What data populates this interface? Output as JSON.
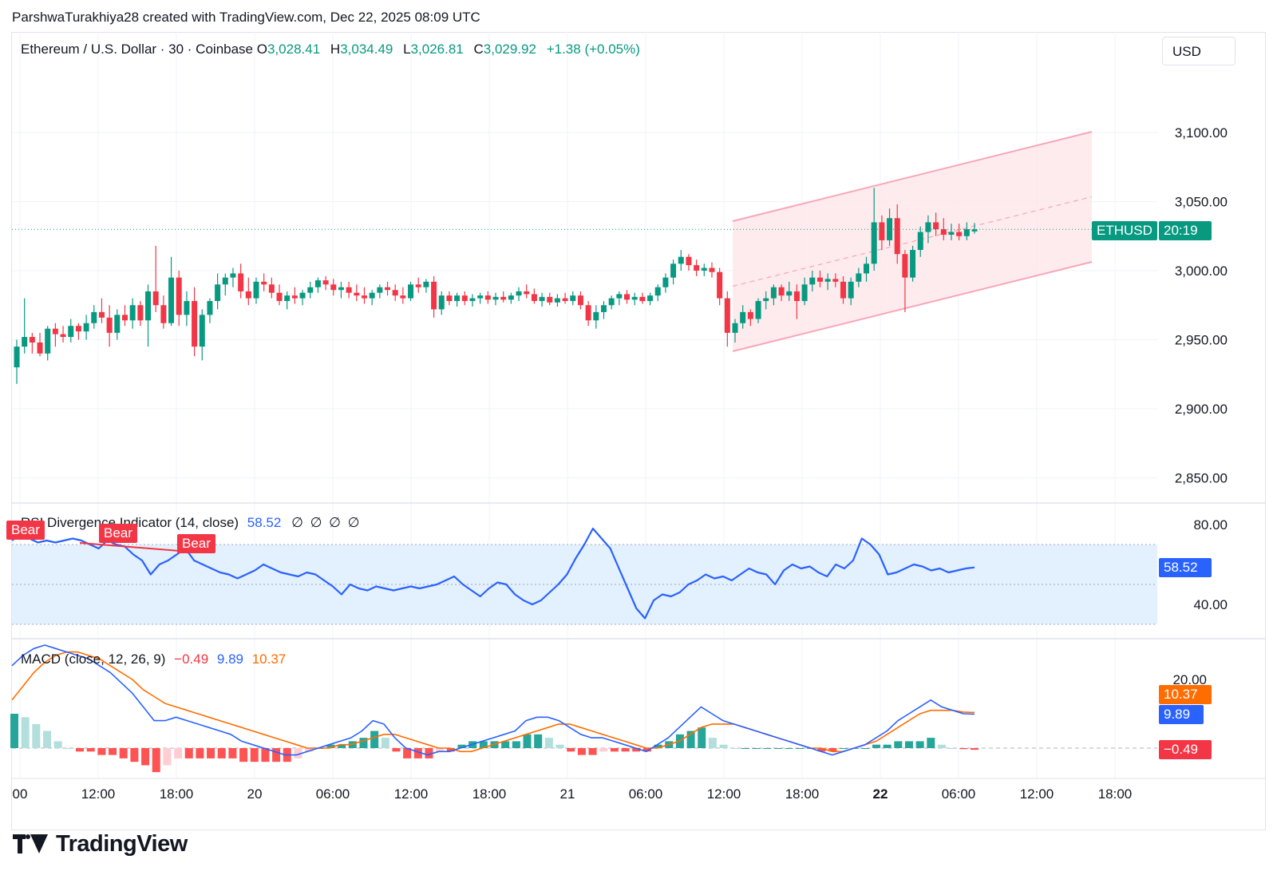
{
  "header": {
    "credit": "ParshwaTurakhiya28 created with TradingView.com, Dec 22, 2025 08:09 UTC"
  },
  "legend": {
    "symbol": "Ethereum / U.S. Dollar · 30 · Coinbase",
    "o_label": "O",
    "o_value": "3,028.41",
    "h_label": "H",
    "h_value": "3,034.49",
    "l_label": "L",
    "l_value": "3,026.81",
    "c_label": "C",
    "c_value": "3,029.92",
    "change": "+1.38 (+0.05%)"
  },
  "currency_button": "USD",
  "price_tag": {
    "symbol": "ETHUSD",
    "countdown": "20:19"
  },
  "rsi": {
    "title": "RSI Divergence Indicator (14, close)",
    "value": "58.52",
    "flags": "∅ ∅ ∅ ∅",
    "tag_value": "58.52",
    "ticks": [
      "80.00",
      "40.00"
    ],
    "bear_labels": [
      "Bear",
      "Bear",
      "Bear"
    ]
  },
  "macd": {
    "title": "MACD (close, 12, 26, 9)",
    "hist_value": "−0.49",
    "macd_value": "9.89",
    "signal_value": "10.37",
    "ticks": [
      "20.00"
    ],
    "tags": {
      "signal": "10.37",
      "macd": "9.89",
      "hist": "−0.49"
    }
  },
  "footer": {
    "brand": "TradingView"
  },
  "colors": {
    "up": "#089981",
    "down": "#f23645",
    "channel_fill": "#fde4e8",
    "channel_line": "#f7a6b8",
    "rsi_line": "#2962ff",
    "rsi_band": "#e3f0fd",
    "macd_line": "#2962ff",
    "signal_line": "#ff6d00",
    "hist_up": "#b2dfdb",
    "hist_up_strong": "#26a69a",
    "hist_down": "#ffcdd2",
    "hist_down_strong": "#ff5252"
  },
  "chart_data": [
    {
      "type": "candlestick",
      "title": "Ethereum / U.S. Dollar · 30 · Coinbase",
      "interval": "30 min",
      "x_tick_labels": [
        "00",
        "12:00",
        "18:00",
        "20",
        "06:00",
        "12:00",
        "18:00",
        "21",
        "06:00",
        "12:00",
        "18:00",
        "22",
        "06:00",
        "12:00",
        "18:00"
      ],
      "y_tick_labels": [
        "3,100.00",
        "3,050.00",
        "3,000.00",
        "2,950.00",
        "2,900.00",
        "2,850.00"
      ],
      "ylim": [
        2830,
        3150
      ],
      "last_price": 3029.92,
      "candles": [
        [
          2930,
          2950,
          2918,
          2945
        ],
        [
          2945,
          2980,
          2940,
          2952
        ],
        [
          2952,
          2955,
          2940,
          2948
        ],
        [
          2948,
          2955,
          2938,
          2940
        ],
        [
          2940,
          2960,
          2935,
          2958
        ],
        [
          2958,
          2962,
          2945,
          2954
        ],
        [
          2954,
          2960,
          2948,
          2952
        ],
        [
          2952,
          2965,
          2948,
          2960
        ],
        [
          2960,
          2962,
          2950,
          2956
        ],
        [
          2956,
          2968,
          2950,
          2962
        ],
        [
          2962,
          2975,
          2958,
          2970
        ],
        [
          2970,
          2980,
          2962,
          2966
        ],
        [
          2966,
          2975,
          2945,
          2955
        ],
        [
          2955,
          2972,
          2950,
          2968
        ],
        [
          2968,
          2975,
          2960,
          2964
        ],
        [
          2964,
          2980,
          2958,
          2975
        ],
        [
          2975,
          2978,
          2960,
          2964
        ],
        [
          2964,
          2990,
          2945,
          2985
        ],
        [
          2985,
          3018,
          2970,
          2975
        ],
        [
          2975,
          2982,
          2958,
          2962
        ],
        [
          2962,
          3010,
          2960,
          2995
        ],
        [
          2995,
          3000,
          2960,
          2968
        ],
        [
          2968,
          2985,
          2960,
          2978
        ],
        [
          2978,
          2988,
          2938,
          2945
        ],
        [
          2945,
          2972,
          2935,
          2968
        ],
        [
          2968,
          2980,
          2962,
          2978
        ],
        [
          2978,
          2998,
          2972,
          2990
        ],
        [
          2990,
          2998,
          2982,
          2995
        ],
        [
          2995,
          3002,
          2988,
          2998
        ],
        [
          2998,
          3005,
          2980,
          2985
        ],
        [
          2985,
          2995,
          2975,
          2980
        ],
        [
          2980,
          2995,
          2976,
          2992
        ],
        [
          2992,
          2998,
          2985,
          2990
        ],
        [
          2990,
          2995,
          2980,
          2984
        ],
        [
          2984,
          2990,
          2975,
          2978
        ],
        [
          2978,
          2985,
          2972,
          2982
        ],
        [
          2982,
          2988,
          2976,
          2980
        ],
        [
          2980,
          2986,
          2975,
          2984
        ],
        [
          2984,
          2992,
          2980,
          2988
        ],
        [
          2988,
          2995,
          2984,
          2993
        ],
        [
          2993,
          2996,
          2986,
          2990
        ],
        [
          2990,
          2994,
          2982,
          2986
        ],
        [
          2986,
          2992,
          2980,
          2988
        ],
        [
          2988,
          2992,
          2980,
          2984
        ],
        [
          2984,
          2990,
          2978,
          2982
        ],
        [
          2982,
          2988,
          2976,
          2980
        ],
        [
          2980,
          2986,
          2975,
          2984
        ],
        [
          2984,
          2990,
          2980,
          2988
        ],
        [
          2988,
          2992,
          2982,
          2986
        ],
        [
          2986,
          2990,
          2978,
          2982
        ],
        [
          2982,
          2988,
          2976,
          2980
        ],
        [
          2980,
          2992,
          2978,
          2990
        ],
        [
          2990,
          2995,
          2984,
          2988
        ],
        [
          2988,
          2994,
          2984,
          2992
        ],
        [
          2992,
          2996,
          2966,
          2972
        ],
        [
          2972,
          2985,
          2968,
          2982
        ],
        [
          2982,
          2985,
          2975,
          2978
        ],
        [
          2978,
          2984,
          2974,
          2982
        ],
        [
          2982,
          2985,
          2975,
          2978
        ],
        [
          2978,
          2983,
          2974,
          2980
        ],
        [
          2980,
          2984,
          2976,
          2982
        ],
        [
          2982,
          2985,
          2976,
          2979
        ],
        [
          2979,
          2984,
          2975,
          2981
        ],
        [
          2981,
          2985,
          2977,
          2979
        ],
        [
          2979,
          2984,
          2976,
          2982
        ],
        [
          2982,
          2988,
          2978,
          2985
        ],
        [
          2985,
          2990,
          2980,
          2983
        ],
        [
          2983,
          2987,
          2976,
          2978
        ],
        [
          2978,
          2984,
          2974,
          2981
        ],
        [
          2981,
          2984,
          2975,
          2977
        ],
        [
          2977,
          2983,
          2974,
          2980
        ],
        [
          2980,
          2984,
          2976,
          2978
        ],
        [
          2978,
          2985,
          2975,
          2982
        ],
        [
          2982,
          2985,
          2972,
          2975
        ],
        [
          2975,
          2978,
          2960,
          2964
        ],
        [
          2964,
          2975,
          2958,
          2970
        ],
        [
          2970,
          2978,
          2965,
          2975
        ],
        [
          2975,
          2982,
          2972,
          2980
        ],
        [
          2980,
          2985,
          2975,
          2983
        ],
        [
          2983,
          2986,
          2976,
          2979
        ],
        [
          2979,
          2984,
          2975,
          2981
        ],
        [
          2981,
          2984,
          2976,
          2978
        ],
        [
          2978,
          2984,
          2975,
          2982
        ],
        [
          2982,
          2990,
          2978,
          2988
        ],
        [
          2988,
          2998,
          2984,
          2995
        ],
        [
          2995,
          3008,
          2990,
          3005
        ],
        [
          3005,
          3015,
          3000,
          3010
        ],
        [
          3010,
          3012,
          3000,
          3004
        ],
        [
          3004,
          3008,
          2996,
          3000
        ],
        [
          3000,
          3005,
          2996,
          3002
        ],
        [
          3002,
          3006,
          2995,
          2999
        ],
        [
          2999,
          3002,
          2975,
          2980
        ],
        [
          2980,
          2985,
          2945,
          2955
        ],
        [
          2955,
          2965,
          2948,
          2962
        ],
        [
          2962,
          2975,
          2958,
          2970
        ],
        [
          2970,
          2972,
          2960,
          2965
        ],
        [
          2965,
          2980,
          2962,
          2978
        ],
        [
          2978,
          2985,
          2972,
          2980
        ],
        [
          2980,
          2990,
          2975,
          2988
        ],
        [
          2988,
          2990,
          2978,
          2982
        ],
        [
          2982,
          2992,
          2978,
          2985
        ],
        [
          2985,
          2990,
          2965,
          2978
        ],
        [
          2978,
          2995,
          2975,
          2990
        ],
        [
          2990,
          3000,
          2985,
          2995
        ],
        [
          2995,
          3000,
          2988,
          2992
        ],
        [
          2992,
          2998,
          2986,
          2994
        ],
        [
          2994,
          2998,
          2988,
          2992
        ],
        [
          2992,
          2996,
          2976,
          2980
        ],
        [
          2980,
          2995,
          2975,
          2992
        ],
        [
          2992,
          3002,
          2988,
          2998
        ],
        [
          2998,
          3010,
          2992,
          3005
        ],
        [
          3005,
          3060,
          3000,
          3035
        ],
        [
          3035,
          3040,
          3015,
          3022
        ],
        [
          3022,
          3045,
          3018,
          3038
        ],
        [
          3038,
          3048,
          3005,
          3012
        ],
        [
          3012,
          3015,
          2970,
          2995
        ],
        [
          2995,
          3018,
          2992,
          3015
        ],
        [
          3015,
          3032,
          3010,
          3028
        ],
        [
          3028,
          3040,
          3020,
          3035
        ],
        [
          3035,
          3042,
          3025,
          3030
        ],
        [
          3030,
          3038,
          3022,
          3026
        ],
        [
          3026,
          3034,
          3022,
          3028
        ],
        [
          3028,
          3034,
          3022,
          3025
        ],
        [
          3025,
          3035,
          3022,
          3030
        ],
        [
          3028.41,
          3034.49,
          3026.81,
          3029.92
        ]
      ],
      "channel": {
        "upper": [
          [
            2943,
            3040
          ],
          [
            3101,
            3040
          ]
        ],
        "lower": [
          [
            2943,
            2943
          ],
          [
            3101,
            3007
          ]
        ]
      }
    },
    {
      "type": "line",
      "title": "RSI Divergence Indicator (14, close)",
      "y_tick_labels": [
        "80.00",
        "40.00"
      ],
      "ylim": [
        30,
        85
      ],
      "band": [
        30,
        70
      ],
      "last_value": 58.52,
      "series": [
        {
          "name": "RSI",
          "values": [
            72,
            75,
            73,
            71,
            72,
            71,
            72,
            73,
            72,
            70,
            68,
            72,
            70,
            69,
            65,
            62,
            55,
            60,
            62,
            65,
            68,
            62,
            60,
            58,
            56,
            55,
            53,
            55,
            57,
            60,
            58,
            56,
            55,
            54,
            56,
            55,
            52,
            49,
            45,
            50,
            48,
            47,
            49,
            48,
            47,
            48,
            49,
            48,
            49,
            50,
            52,
            54,
            50,
            47,
            44,
            48,
            51,
            50,
            45,
            42,
            40,
            42,
            46,
            50,
            55,
            63,
            70,
            78,
            73,
            68,
            58,
            48,
            38,
            33,
            42,
            45,
            44,
            46,
            50,
            52,
            55,
            53,
            54,
            52,
            55,
            58,
            56,
            55,
            50,
            57,
            60,
            58,
            59,
            56,
            54,
            60,
            58,
            62,
            73,
            70,
            65,
            55,
            56,
            58,
            60,
            59,
            57,
            58,
            56,
            57,
            58,
            58.52
          ]
        }
      ],
      "annotations": [
        "Bear",
        "Bear",
        "Bear"
      ]
    },
    {
      "type": "line",
      "title": "MACD (close, 12, 26, 9)",
      "y_tick_labels": [
        "20.00"
      ],
      "ylim": [
        -10,
        35
      ],
      "series": [
        {
          "name": "MACD",
          "values": [
            24,
            27,
            29,
            30,
            29,
            28,
            27,
            26,
            24,
            22,
            19,
            16,
            12,
            8,
            8,
            9,
            8,
            7,
            6,
            5,
            4,
            2,
            1,
            0,
            -1,
            -2,
            -2,
            -1,
            0,
            1,
            2,
            3,
            5,
            8,
            7,
            3,
            0,
            -1,
            -2,
            -1,
            -1,
            0,
            1,
            2,
            3,
            4,
            5,
            8,
            9,
            9,
            8,
            6,
            4,
            3,
            3,
            2,
            1,
            0,
            -1,
            1,
            3,
            6,
            9,
            12,
            10,
            8,
            7,
            6,
            5,
            4,
            3,
            2,
            1,
            0,
            -1,
            -2,
            -1,
            0,
            1,
            3,
            5,
            8,
            10,
            12,
            14,
            12,
            11,
            10,
            9.89
          ]
        },
        {
          "name": "Signal",
          "values": [
            14,
            18,
            22,
            25,
            27,
            28,
            28,
            27,
            26,
            24,
            22,
            20,
            17,
            15,
            13,
            12,
            11,
            10,
            9,
            8,
            7,
            6,
            5,
            4,
            3,
            2,
            1,
            0,
            0,
            0,
            1,
            1,
            2,
            3,
            4,
            4,
            3,
            2,
            1,
            0,
            0,
            -1,
            -1,
            0,
            1,
            2,
            3,
            4,
            5,
            6,
            7,
            7,
            6,
            5,
            4,
            3,
            2,
            1,
            0,
            0,
            1,
            2,
            4,
            6,
            7,
            7,
            7,
            6,
            5,
            4,
            3,
            2,
            1,
            0,
            0,
            -1,
            -1,
            0,
            1,
            2,
            4,
            6,
            8,
            10,
            11,
            11,
            11,
            10.5,
            10.37
          ]
        }
      ],
      "histogram": [
        10,
        9,
        7,
        5,
        2,
        0,
        -1,
        -1,
        -2,
        -2,
        -3,
        -4,
        -5,
        -7,
        -5,
        -3,
        -3,
        -3,
        -3,
        -3,
        -3,
        -4,
        -4,
        -4,
        -4,
        -4,
        -3,
        -1,
        0,
        1,
        1,
        2,
        3,
        5,
        3,
        -1,
        -3,
        -3,
        -3,
        -1,
        -1,
        1,
        2,
        2,
        2,
        2,
        2,
        4,
        4,
        3,
        1,
        -1,
        -2,
        -2,
        -1,
        -1,
        -1,
        -1,
        -1,
        1,
        2,
        4,
        5,
        6,
        3,
        1,
        0,
        0,
        0,
        0,
        0,
        0,
        0,
        0,
        -1,
        -1,
        0,
        0,
        0,
        1,
        1,
        2,
        2,
        2,
        3,
        1,
        0,
        -0.3,
        -0.49
      ]
    }
  ]
}
